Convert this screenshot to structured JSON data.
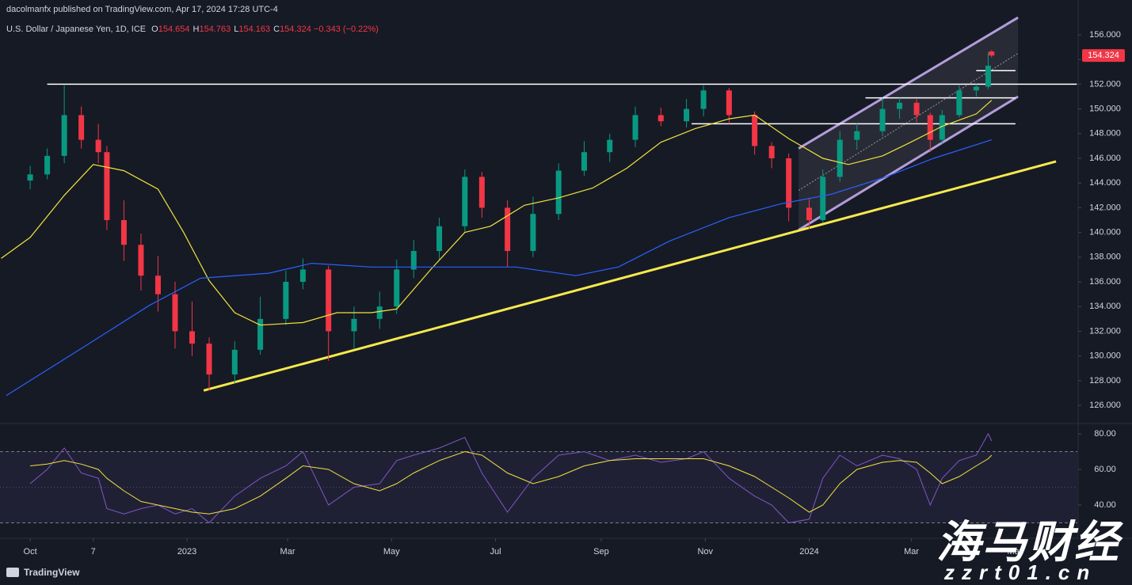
{
  "header": {
    "published": "dacolmanfx published on TradingView.com, Apr 17, 2024 17:28 UTC-4",
    "symbol": "U.S. Dollar / Japanese Yen, 1D, ICE",
    "ohlc": [
      {
        "key": "O",
        "value": "154.654"
      },
      {
        "key": "H",
        "value": "154.763"
      },
      {
        "key": "L",
        "value": "154.163"
      },
      {
        "key": "C",
        "value": "154.324"
      }
    ],
    "change": "−0.343 (−0.22%)"
  },
  "chart_data": [
    {
      "type": "candlestick",
      "x": [
        0,
        10,
        20,
        30,
        40,
        45,
        55,
        65,
        75,
        85,
        95,
        105,
        120,
        135,
        150,
        160,
        175,
        190,
        205,
        215,
        225,
        240,
        255,
        265,
        280,
        295,
        310,
        325,
        340,
        355,
        370,
        385,
        395,
        410,
        425,
        435,
        445,
        457,
        465,
        475,
        485,
        500,
        510,
        520,
        528,
        535,
        545,
        555,
        562,
        564
      ],
      "xlim": [
        -17.7,
        614.3
      ],
      "xticks": [
        {
          "value": 0,
          "label": "Oct"
        },
        {
          "value": 37,
          "label": "7"
        },
        {
          "value": 92,
          "label": "2023"
        },
        {
          "value": 151,
          "label": "Mar"
        },
        {
          "value": 212,
          "label": "May"
        },
        {
          "value": 273,
          "label": "Jul"
        },
        {
          "value": 335,
          "label": "Sep"
        },
        {
          "value": 396,
          "label": "Nov"
        },
        {
          "value": 457,
          "label": "2024"
        },
        {
          "value": 517,
          "label": "Mar"
        },
        {
          "value": 578,
          "label": "May"
        }
      ],
      "ylim": [
        124.53,
        158.82
      ],
      "yticks": [
        {
          "value": 126,
          "label": "126.000"
        },
        {
          "value": 128,
          "label": "128.000"
        },
        {
          "value": 130,
          "label": "130.000"
        },
        {
          "value": 132,
          "label": "132.000"
        },
        {
          "value": 134,
          "label": "134.000"
        },
        {
          "value": 136,
          "label": "136.000"
        },
        {
          "value": 138,
          "label": "138.000"
        },
        {
          "value": 140,
          "label": "140.000"
        },
        {
          "value": 142,
          "label": "142.000"
        },
        {
          "value": 144,
          "label": "144.000"
        },
        {
          "value": 146,
          "label": "146.000"
        },
        {
          "value": 148,
          "label": "148.000"
        },
        {
          "value": 150,
          "label": "150.000"
        },
        {
          "value": 152,
          "label": "152.000"
        },
        {
          "value": 154,
          "label": "154.000"
        },
        {
          "value": 156,
          "label": "156.000"
        }
      ],
      "series": [
        {
          "type": "candlestick",
          "up_color": "#089981",
          "down_color": "#f23645",
          "values": [
            [
              144.2,
              145.4,
              143.5,
              144.7
            ],
            [
              144.7,
              146.8,
              144.3,
              146.2
            ],
            [
              146.2,
              151.9,
              145.6,
              149.5
            ],
            [
              149.5,
              150.2,
              146.8,
              147.5
            ],
            [
              147.5,
              148.8,
              145.6,
              146.5
            ],
            [
              146.5,
              147.0,
              140.2,
              141.0
            ],
            [
              141.0,
              142.6,
              137.7,
              139.0
            ],
            [
              139.0,
              139.9,
              135.3,
              136.5
            ],
            [
              136.5,
              138.1,
              133.6,
              135.0
            ],
            [
              135.0,
              136.0,
              130.6,
              132.0
            ],
            [
              132.0,
              134.4,
              130.0,
              131.0
            ],
            [
              131.0,
              131.5,
              127.2,
              128.5
            ],
            [
              128.5,
              131.2,
              127.8,
              130.5
            ],
            [
              130.5,
              134.8,
              130.1,
              133.0
            ],
            [
              133.0,
              136.9,
              132.5,
              136.0
            ],
            [
              136.0,
              137.9,
              135.4,
              137.0
            ],
            [
              137.0,
              137.3,
              129.6,
              132.0
            ],
            [
              132.0,
              134.0,
              130.6,
              133.0
            ],
            [
              133.0,
              135.2,
              132.2,
              134.0
            ],
            [
              134.0,
              137.8,
              133.4,
              137.0
            ],
            [
              137.0,
              139.4,
              136.3,
              138.5
            ],
            [
              138.5,
              141.2,
              137.8,
              140.5
            ],
            [
              140.5,
              145.1,
              140.0,
              144.5
            ],
            [
              144.5,
              144.9,
              141.2,
              142.0
            ],
            [
              142.0,
              142.6,
              137.2,
              138.5
            ],
            [
              138.5,
              142.9,
              138.0,
              141.5
            ],
            [
              141.5,
              145.6,
              141.0,
              145.0
            ],
            [
              145.0,
              147.4,
              144.6,
              146.5
            ],
            [
              146.5,
              148.0,
              145.7,
              147.5
            ],
            [
              147.5,
              150.2,
              146.9,
              149.5
            ],
            [
              149.5,
              150.1,
              148.6,
              149.0
            ],
            [
              149.0,
              150.8,
              148.5,
              150.0
            ],
            [
              150.0,
              151.9,
              149.4,
              151.5
            ],
            [
              151.5,
              151.7,
              148.8,
              149.5
            ],
            [
              149.5,
              149.8,
              146.3,
              147.0
            ],
            [
              147.0,
              147.3,
              145.2,
              146.0
            ],
            [
              146.0,
              146.4,
              140.9,
              142.0
            ],
            [
              142.0,
              142.8,
              140.3,
              141.0
            ],
            [
              141.0,
              145.1,
              140.8,
              144.5
            ],
            [
              144.5,
              148.2,
              144.1,
              147.5
            ],
            [
              147.5,
              148.8,
              146.7,
              148.2
            ],
            [
              148.2,
              150.9,
              147.8,
              150.0
            ],
            [
              150.0,
              150.9,
              149.2,
              150.5
            ],
            [
              150.5,
              150.8,
              148.9,
              149.5
            ],
            [
              149.5,
              149.7,
              146.5,
              147.5
            ],
            [
              147.5,
              149.9,
              147.2,
              149.5
            ],
            [
              149.5,
              151.9,
              149.3,
              151.5
            ],
            [
              151.5,
              152.0,
              151.0,
              151.8
            ],
            [
              151.8,
              154.6,
              151.6,
              153.5
            ],
            [
              154.654,
              154.763,
              154.163,
              154.324
            ]
          ]
        },
        {
          "type": "line",
          "color": "#f2e33b",
          "x": [
            -17,
            0,
            20,
            37,
            55,
            75,
            90,
            105,
            120,
            135,
            160,
            180,
            200,
            215,
            235,
            255,
            270,
            290,
            310,
            330,
            350,
            370,
            390,
            410,
            425,
            445,
            465,
            480,
            500,
            515,
            535,
            555,
            564
          ],
          "values": [
            137.9,
            139.6,
            143,
            145.5,
            145,
            143.5,
            140,
            136.1,
            133.5,
            132.5,
            132.7,
            133.5,
            133.5,
            133.8,
            137,
            140,
            140.5,
            142.2,
            142.8,
            143.6,
            145.2,
            147.3,
            148.4,
            149.2,
            149.5,
            147.6,
            146,
            145.5,
            146.2,
            147.2,
            148.6,
            149.6,
            150.7
          ]
        },
        {
          "type": "line",
          "color": "#2962ff",
          "x": [
            -14,
            30,
            70,
            100,
            140,
            165,
            200,
            240,
            285,
            320,
            345,
            375,
            410,
            440,
            470,
            500,
            530,
            564
          ],
          "values": [
            126.8,
            130.6,
            134.1,
            136.3,
            136.7,
            137.5,
            137.2,
            137.2,
            137.2,
            136.5,
            137.2,
            139.3,
            141.2,
            142.3,
            143.1,
            144.4,
            146,
            147.5
          ]
        }
      ],
      "levels": [
        {
          "x": [
            10,
            614
          ],
          "y": 152.0,
          "color": "#ffffff"
        },
        {
          "x": [
            555,
            578
          ],
          "y": 153.1,
          "color": "#ffffff"
        },
        {
          "x": [
            490,
            578
          ],
          "y": 150.9,
          "color": "#ffffff"
        },
        {
          "x": [
            388,
            578
          ],
          "y": 148.8,
          "color": "#ffffff"
        }
      ],
      "trendlines": [
        {
          "x": [
            101.8,
            601.8
          ],
          "y": [
            127.2,
            145.75
          ],
          "color": "#f7e94d"
        }
      ],
      "channel": {
        "x": [
          450.8,
          579.5
        ],
        "upper": [
          146.8,
          157.4
        ],
        "lower": [
          140.2,
          151.0
        ],
        "middle": [
          143.4,
          154.5
        ],
        "color": "#b39ddb"
      },
      "last_price": {
        "value": 154.324,
        "label": "154.324",
        "color": "#f23645"
      }
    },
    {
      "type": "line",
      "x": [
        0,
        10,
        20,
        30,
        40,
        45,
        55,
        65,
        75,
        85,
        95,
        105,
        120,
        135,
        150,
        160,
        175,
        190,
        205,
        215,
        225,
        240,
        255,
        265,
        280,
        295,
        310,
        325,
        340,
        355,
        370,
        385,
        395,
        410,
        425,
        435,
        445,
        457,
        465,
        475,
        485,
        500,
        510,
        520,
        528,
        535,
        545,
        555,
        562,
        564
      ],
      "xlim": [
        -17.7,
        614.3
      ],
      "ylim": [
        21.3,
        85.8
      ],
      "yticks": [
        {
          "value": 40,
          "label": "40.00"
        },
        {
          "value": 60,
          "label": "60.00"
        },
        {
          "value": 80,
          "label": "80.00"
        }
      ],
      "band": [
        30,
        70
      ],
      "midline": 50,
      "series": [
        {
          "color": "#7e57c2",
          "values": [
            52,
            60,
            72,
            58,
            55,
            38,
            35,
            38,
            40,
            35,
            38,
            30,
            45,
            55,
            62,
            70,
            40,
            50,
            52,
            65,
            68,
            72,
            78,
            58,
            36,
            55,
            68,
            70,
            65,
            68,
            64,
            66,
            70,
            55,
            45,
            40,
            30,
            32,
            55,
            68,
            62,
            68,
            66,
            60,
            40,
            55,
            65,
            68,
            80,
            76
          ]
        },
        {
          "color": "#f2e33b",
          "values": [
            62,
            63,
            65,
            63,
            60,
            55,
            48,
            42,
            40,
            38,
            36,
            35,
            38,
            45,
            55,
            62,
            60,
            52,
            48,
            52,
            58,
            65,
            70,
            68,
            58,
            52,
            56,
            62,
            65,
            66,
            66,
            66,
            66,
            62,
            56,
            50,
            44,
            36,
            40,
            52,
            60,
            64,
            65,
            64,
            58,
            52,
            56,
            62,
            66,
            68
          ]
        }
      ]
    }
  ],
  "footer": {
    "brand": "TradingView",
    "watermark": "海马财经",
    "watermark_url": "zzrt01.cn"
  }
}
